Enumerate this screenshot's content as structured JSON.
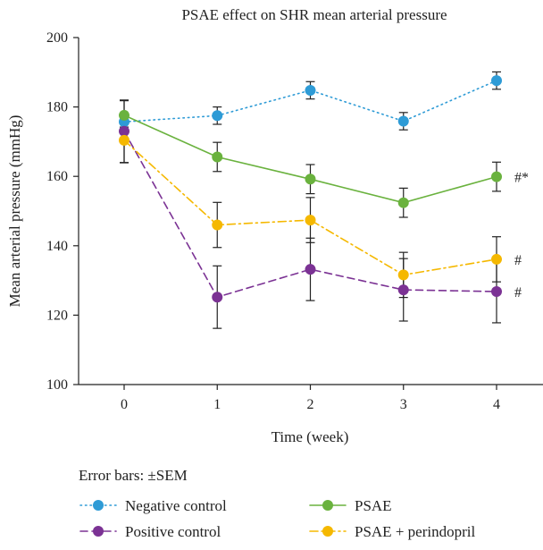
{
  "chart_data": {
    "type": "line",
    "title": "PSAE effect on SHR mean arterial pressure",
    "xlabel": "Time (week)",
    "ylabel": "Mean arterial pressure (mmHg)",
    "x": [
      0,
      1,
      2,
      3,
      4
    ],
    "xlim": [
      -0.5,
      4.5
    ],
    "ylim": [
      100,
      200
    ],
    "yticks": [
      100,
      120,
      140,
      160,
      180,
      200
    ],
    "xticks": [
      0,
      1,
      2,
      3,
      4
    ],
    "grid": false,
    "error_bar_note": "Error bars: ±SEM",
    "legend_position": "bottom",
    "series": [
      {
        "name": "Negative control",
        "color": "#2e9bd6",
        "dash": "dotted",
        "values": [
          175.7,
          177.5,
          184.8,
          175.9,
          187.6
        ],
        "err": [
          1.5,
          2.5,
          2.5,
          2.5,
          2.5
        ],
        "annotation": ""
      },
      {
        "name": "Positive control",
        "color": "#7b3294",
        "dash": "dashed",
        "values": [
          173.0,
          125.2,
          133.2,
          127.3,
          126.8
        ],
        "err": [
          9.0,
          9.0,
          9.0,
          9.0,
          9.0
        ],
        "annotation": "#"
      },
      {
        "name": "PSAE",
        "color": "#6ab23e",
        "dash": "solid",
        "values": [
          177.6,
          165.6,
          159.2,
          152.4,
          159.9
        ],
        "err": [
          4.2,
          4.2,
          4.2,
          4.2,
          4.2
        ],
        "annotation": "#*"
      },
      {
        "name": "PSAE + perindopril",
        "color": "#f5b800",
        "dash": "dashdot",
        "values": [
          170.4,
          146.0,
          147.4,
          131.6,
          136.1
        ],
        "err": [
          6.5,
          6.5,
          6.5,
          6.5,
          6.5
        ],
        "annotation": "#"
      }
    ]
  }
}
